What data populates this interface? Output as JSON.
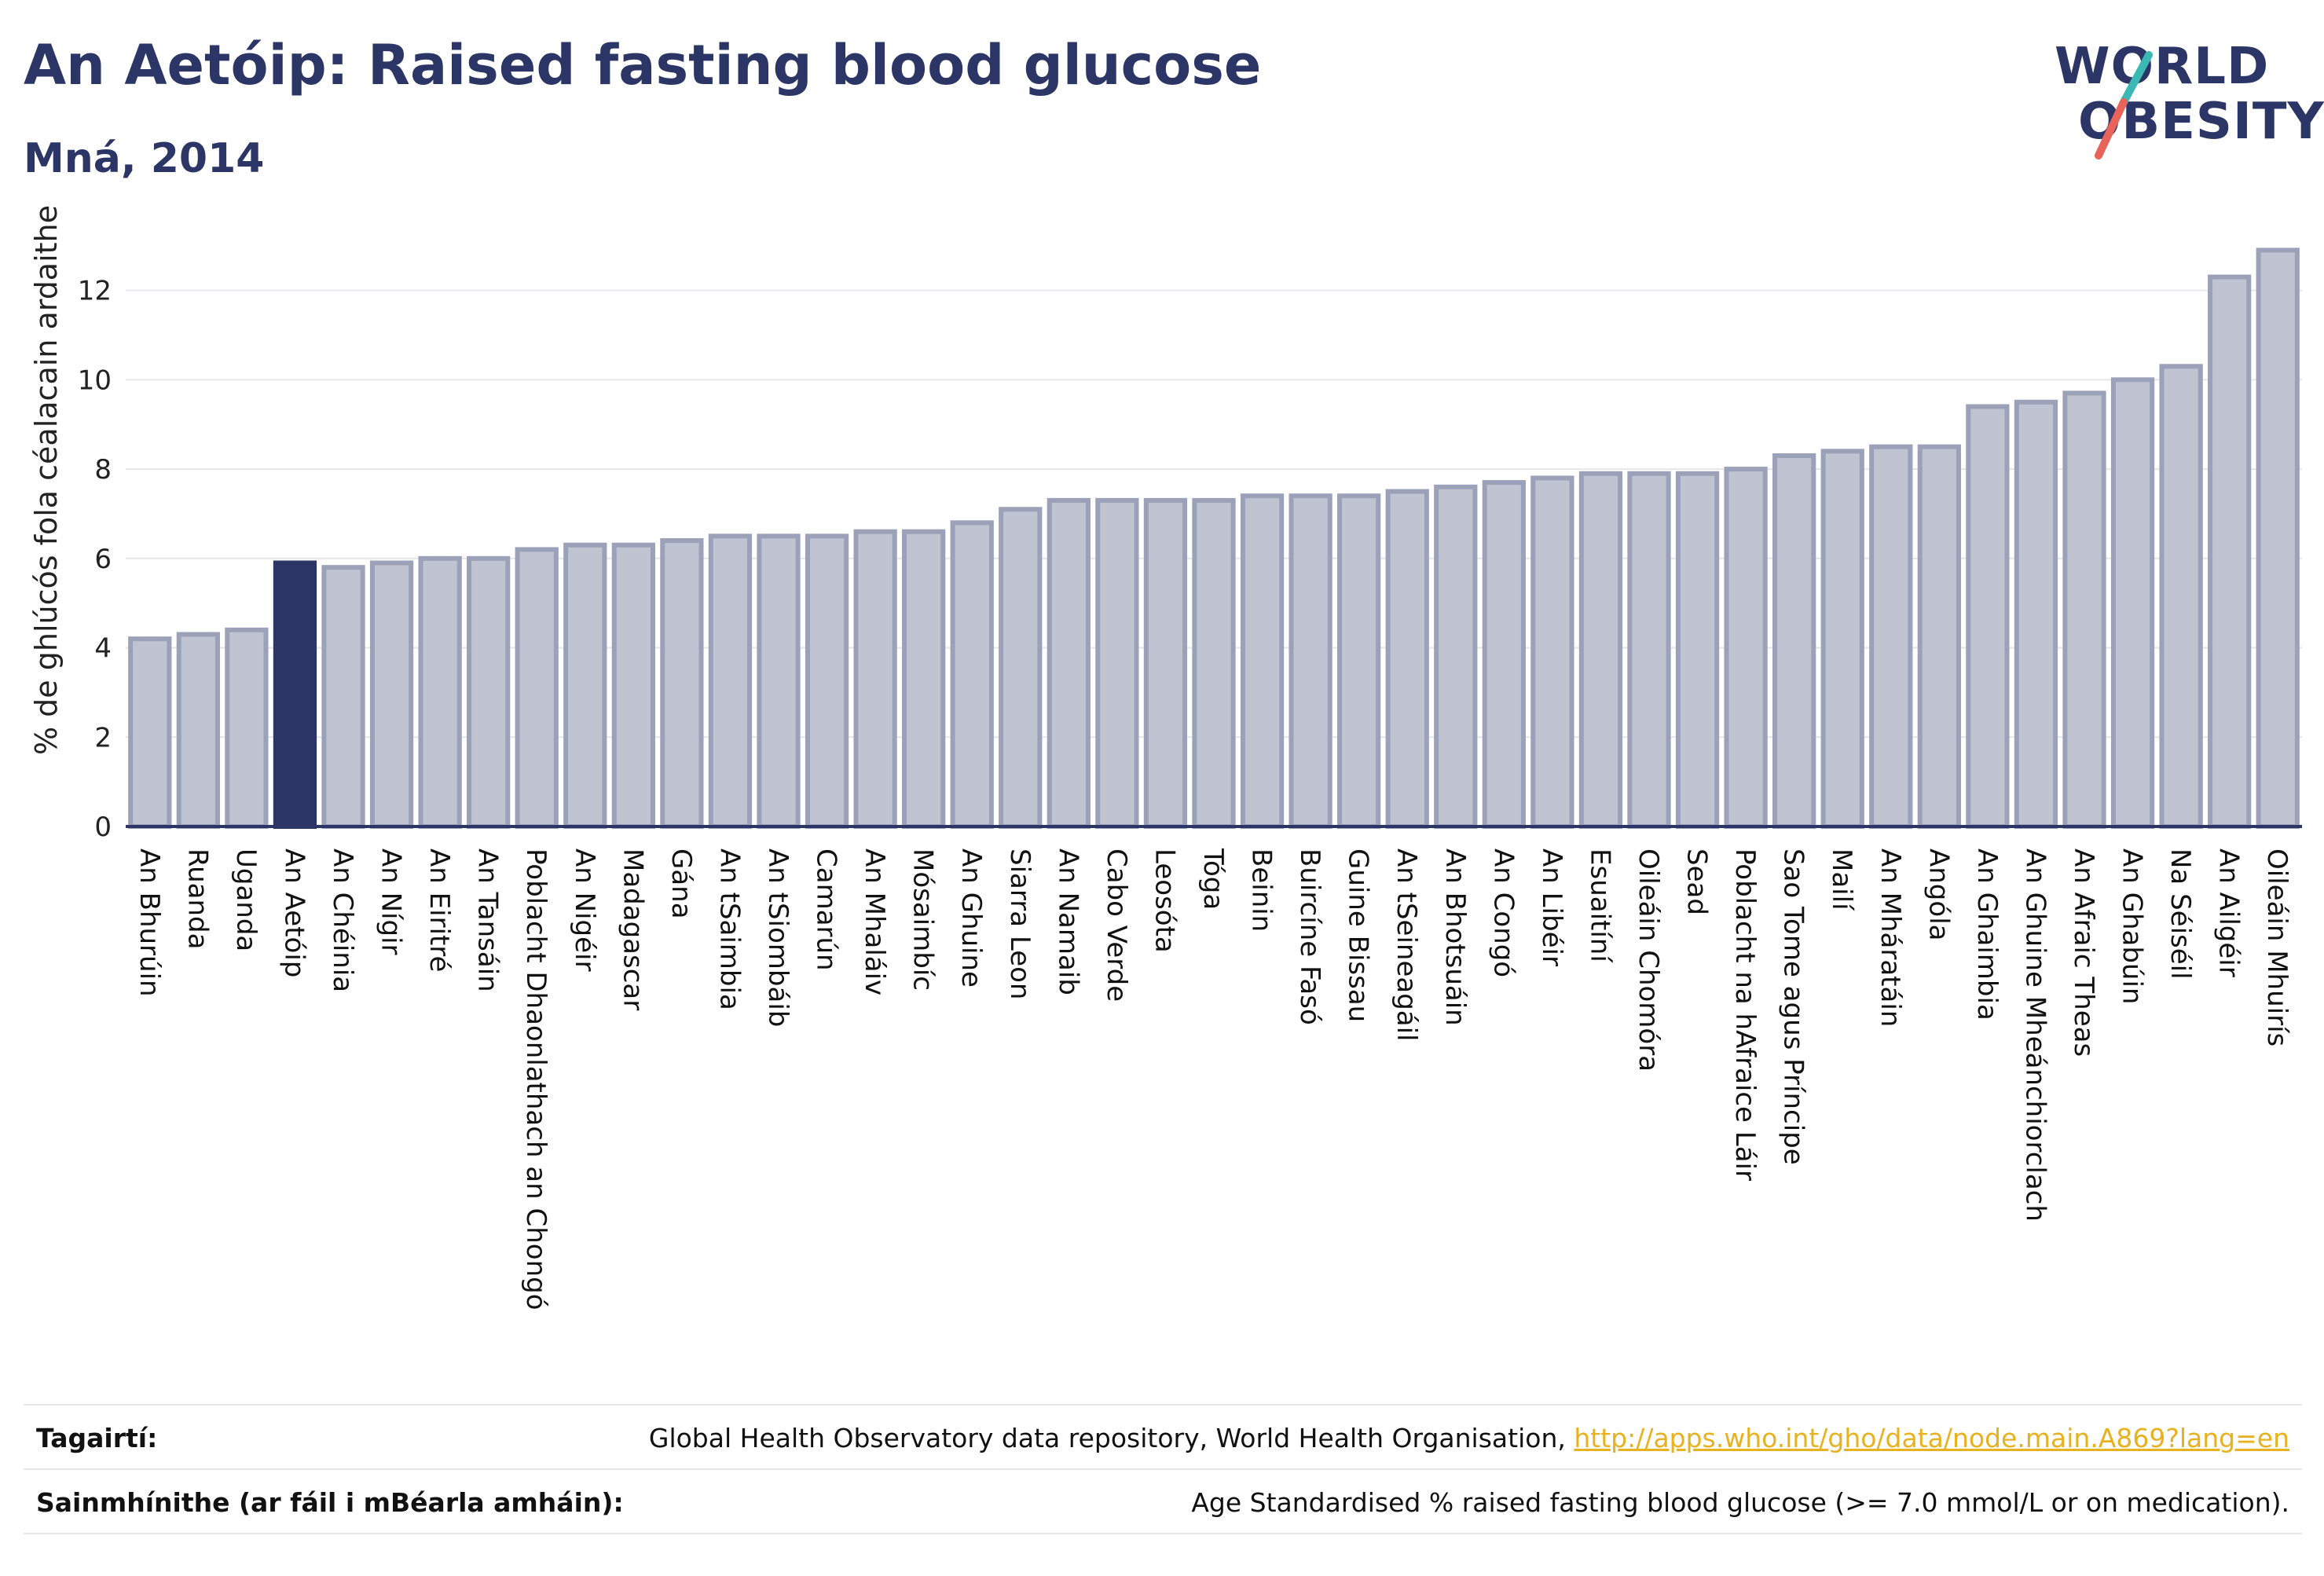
{
  "header": {
    "title": "An Aetóip: Raised fasting blood glucose",
    "subtitle": "Mná, 2014"
  },
  "logo": {
    "line1": "WORLD",
    "line2": "OBESITY",
    "colors": {
      "text": "#2b3566",
      "teal": "#3cb9b4",
      "coral": "#e8645a"
    }
  },
  "chart_data": {
    "type": "bar",
    "title": "",
    "xlabel": "",
    "ylabel": "% de ghlúcós fola céalacain ardaithe",
    "ylim": [
      0,
      13.4
    ],
    "yticks": [
      0,
      2,
      4,
      6,
      8,
      10,
      12
    ],
    "grid": true,
    "highlight": "An Aetóip",
    "colors": {
      "bar_fill": "#c0c4d1",
      "bar_stroke": "#9aa1b8",
      "highlight_fill": "#2b3566",
      "axis": "#2b3566",
      "grid": "#e6e6ea"
    },
    "categories": [
      "An Bhurúin",
      "Ruanda",
      "Uganda",
      "An Aetóip",
      "An Chéinia",
      "An Nígir",
      "An Eiritré",
      "An Tansáin",
      "Poblacht Dhaonlathach an Chongó",
      "An Nigéir",
      "Madagascar",
      "Gána",
      "An tSaimbia",
      "An tSiombáib",
      "Camarún",
      "An Mhaláiv",
      "Mósaimbíc",
      "An Ghuine",
      "Siarra Leon",
      "An Namaib",
      "Cabo Verde",
      "Leosóta",
      "Tóga",
      "Beinin",
      "Buircíne Fasó",
      "Guine Bissau",
      "An tSeineagáil",
      "An Bhotsuáin",
      "An Congó",
      "An Libéir",
      "Esuaitíní",
      "Oileáin Chomóra",
      "Sead",
      "Poblacht na hAfraice Láir",
      "Sao Tome agus Príncipe",
      "Mailí",
      "An Mháratáin",
      "Angóla",
      "An Ghaimbia",
      "An Ghuine Mheánchiorclach",
      "An Afraic Theas",
      "An Ghabúin",
      "Na Séiséil",
      "An Ailgéir",
      "Oileáin Mhuirís"
    ],
    "values": [
      4.2,
      4.3,
      4.4,
      5.9,
      5.8,
      5.9,
      6.0,
      6.0,
      6.2,
      6.3,
      6.3,
      6.4,
      6.5,
      6.5,
      6.5,
      6.6,
      6.6,
      6.8,
      7.1,
      7.3,
      7.3,
      7.3,
      7.3,
      7.4,
      7.4,
      7.4,
      7.5,
      7.6,
      7.7,
      7.8,
      7.9,
      7.9,
      7.9,
      8.0,
      8.3,
      8.4,
      8.5,
      8.5,
      9.4,
      9.5,
      9.7,
      10.0,
      10.3,
      12.3,
      12.9
    ]
  },
  "footer": {
    "references_label": "Tagairtí:",
    "references_text": "Global Health Observatory data repository, World Health Organisation, ",
    "references_link": "http://apps.who.int/gho/data/node.main.A869?lang=en",
    "definitions_label": "Sainmhínithe (ar fáil i mBéarla amháin):",
    "definitions_text": "Age Standardised % raised fasting blood glucose (>= 7.0 mmol/L or on medication)."
  }
}
